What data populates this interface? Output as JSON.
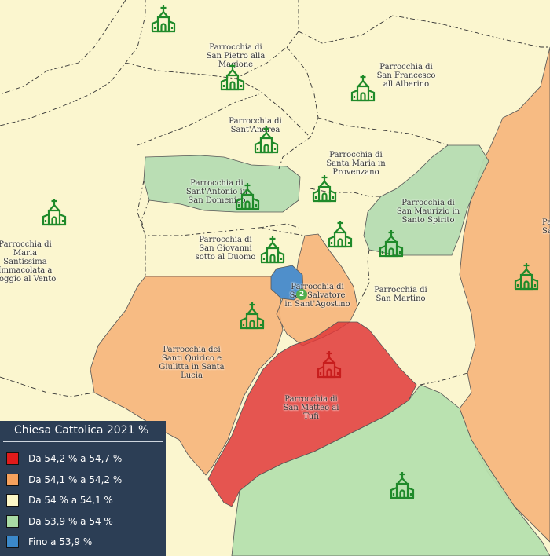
{
  "legend": {
    "title": "Chiesa Cattolica 2021 %",
    "items": [
      {
        "label": "Da 54,2 % a 54,7 %",
        "color": "#e01b1b"
      },
      {
        "label": "Da 54,1 % a 54,2 %",
        "color": "#f6a15c"
      },
      {
        "label": "Da 54 % a 54,1 %",
        "color": "#fdf7c6"
      },
      {
        "label": "Da 53,9 % a 54 %",
        "color": "#a9dba4"
      },
      {
        "label": "Fino a 53,9 %",
        "color": "#3b88c9"
      }
    ]
  },
  "parishes": [
    {
      "id": "pietro",
      "lines": [
        "Parrocchia di",
        "San Pietro alla",
        "Magione"
      ]
    },
    {
      "id": "francesco",
      "lines": [
        "Parrocchia di",
        "San Francesco",
        "all'Alberino"
      ]
    },
    {
      "id": "andrea",
      "lines": [
        "Parrocchia di",
        "Sant'Andrea"
      ]
    },
    {
      "id": "mariaprov",
      "lines": [
        "Parrocchia di",
        "Santa Maria in",
        "Provenzano"
      ]
    },
    {
      "id": "antonio",
      "lines": [
        "Parrocchia di",
        "Sant'Antonio in",
        "San Domenico"
      ]
    },
    {
      "id": "maurizio",
      "lines": [
        "Parrocchia di",
        "San Maurizio in",
        "Santo Spirito"
      ]
    },
    {
      "id": "mariapoggio",
      "lines": [
        "Parrocchia di",
        "Maria",
        "Santissima",
        "Immacolata a",
        "Poggio al Vento"
      ]
    },
    {
      "id": "giovanni",
      "lines": [
        "Parrocchia di",
        "San Giovanni",
        "sotto al Duomo"
      ]
    },
    {
      "id": "salvatore",
      "lines": [
        "Parrocchia di",
        "San Salvatore",
        "in Sant'Agostino"
      ]
    },
    {
      "id": "martino",
      "lines": [
        "Parrocchia di",
        "San Martino"
      ]
    },
    {
      "id": "quirico",
      "lines": [
        "Parrocchia dei",
        "Santi Quirico e",
        "Giulitta in Santa",
        "Lucia"
      ]
    },
    {
      "id": "matteo",
      "lines": [
        "Parrocchia di",
        "San Matteo ai",
        "Tufi"
      ]
    },
    {
      "id": "edge",
      "lines": [
        "Par",
        "San"
      ]
    }
  ],
  "cluster_count": "2",
  "icons": {
    "church": "church-icon"
  }
}
